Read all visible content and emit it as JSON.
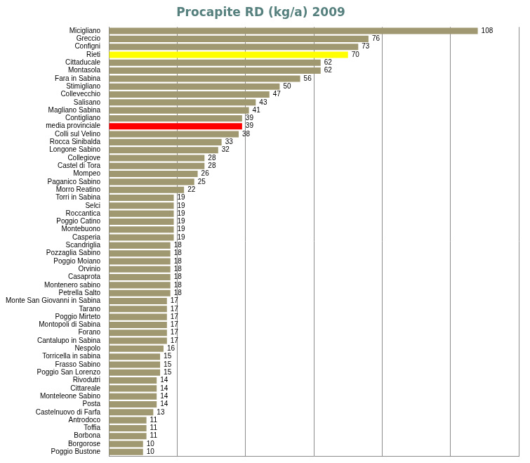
{
  "chart_data": {
    "type": "bar",
    "orientation": "horizontal",
    "title": "Procapite RD (kg/a) 2009",
    "categories": [
      "Micigliano",
      "Greccio",
      "Configni",
      "Rieti",
      "Cittaducale",
      "Montasola",
      "Fara in Sabina",
      "Stimigliano",
      "Collevecchio",
      "Salisano",
      "Magliano Sabina",
      "Contigliano",
      "media provinciale",
      "Colli sul Velino",
      "Rocca Sinibalda",
      "Longone Sabino",
      "Collegiove",
      "Castel di Tora",
      "Mompeo",
      "Paganico Sabino",
      "Morro Reatino",
      "Torri in Sabina",
      "Selci",
      "Roccantica",
      "Poggio Catino",
      "Montebuono",
      "Casperia",
      "Scandriglia",
      "Pozzaglia Sabino",
      "Poggio Moiano",
      "Orvinio",
      "Casaprota",
      "Montenero sabino",
      "Petrella Salto",
      "Monte San Giovanni in Sabina",
      "Tarano",
      "Poggio Mirteto",
      "Montopoli di Sabina",
      "Forano",
      "Cantalupo in Sabina",
      "Nespolo",
      "Torricella in sabina",
      "Frasso Sabino",
      "Poggio San Lorenzo",
      "Rivodutri",
      "Cittareale",
      "Monteleone Sabino",
      "Posta",
      "Castelnuovo di Farfa",
      "Antrodoco",
      "Toffia",
      "Borbona",
      "Borgorose",
      "Poggio Bustone"
    ],
    "values": [
      108,
      76,
      73,
      70,
      62,
      62,
      56,
      50,
      47,
      43,
      41,
      39,
      39,
      38,
      33,
      32,
      28,
      28,
      26,
      25,
      22,
      19,
      19,
      19,
      19,
      19,
      19,
      18,
      18,
      18,
      18,
      18,
      18,
      18,
      17,
      17,
      17,
      17,
      17,
      17,
      16,
      15,
      15,
      15,
      14,
      14,
      14,
      14,
      13,
      11,
      11,
      11,
      10,
      10
    ],
    "colors": [
      "#a09870",
      "#a09870",
      "#a09870",
      "#ffff00",
      "#a09870",
      "#a09870",
      "#a09870",
      "#a09870",
      "#a09870",
      "#a09870",
      "#a09870",
      "#a09870",
      "#ff0000",
      "#a09870",
      "#a09870",
      "#a09870",
      "#a09870",
      "#a09870",
      "#a09870",
      "#a09870",
      "#a09870",
      "#a09870",
      "#a09870",
      "#a09870",
      "#a09870",
      "#a09870",
      "#a09870",
      "#a09870",
      "#a09870",
      "#a09870",
      "#a09870",
      "#a09870",
      "#a09870",
      "#a09870",
      "#a09870",
      "#a09870",
      "#a09870",
      "#a09870",
      "#a09870",
      "#a09870",
      "#a09870",
      "#a09870",
      "#a09870",
      "#a09870",
      "#a09870",
      "#a09870",
      "#a09870",
      "#a09870",
      "#a09870",
      "#a09870",
      "#a09870",
      "#a09870",
      "#a09870",
      "#a09870"
    ],
    "xlim": [
      0,
      120
    ],
    "xticks": [
      0,
      20,
      40,
      60,
      80,
      100,
      120
    ],
    "grid": true,
    "data_labels": true,
    "tick_labels": "y"
  }
}
